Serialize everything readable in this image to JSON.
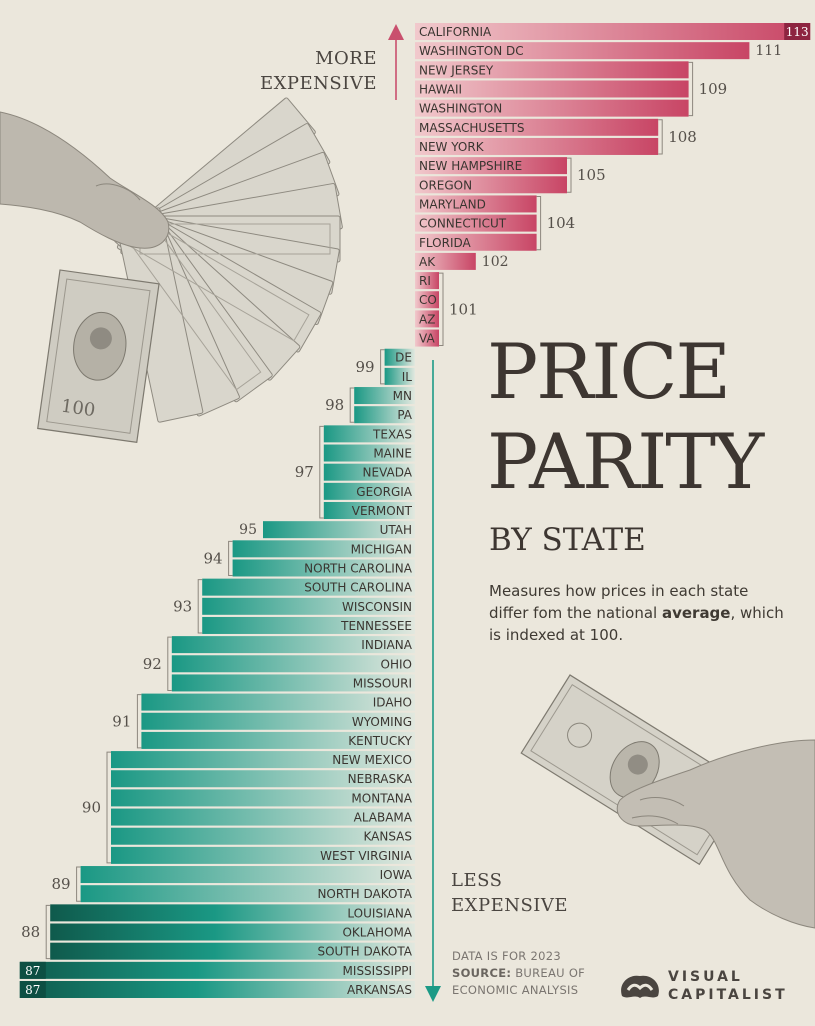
{
  "header": {
    "more_label_1": "MORE",
    "more_label_2": "EXPENSIVE",
    "less_label_1": "LESS",
    "less_label_2": "EXPENSIVE"
  },
  "title": {
    "line1": "PRICE",
    "line2": "PARITY",
    "subtitle": "BY STATE",
    "description_pre": "Measures how prices in each state differ fom the national ",
    "description_bold": "average",
    "description_post": ", which is indexed at 100."
  },
  "footer": {
    "data_year": "DATA IS FOR 2023",
    "source_label": "SOURCE:",
    "source_text": "BUREAU OF ECONOMIC ANALYSIS",
    "logo_line1": "VISUAL",
    "logo_line2": "CAPITALIST"
  },
  "colors": {
    "above_average": "#c94a68",
    "above_average_light": "#efc2c6",
    "below_average": "#1c9a86",
    "below_average_light": "#dde6dc",
    "darkest": "#0f5a4c"
  },
  "chart_data": {
    "type": "bar",
    "baseline": 100,
    "xlim": [
      86,
      113
    ],
    "categories": [
      "CALIFORNIA",
      "WASHINGTON DC",
      "NEW JERSEY",
      "HAWAII",
      "WASHINGTON",
      "MASSACHUSETTS",
      "NEW YORK",
      "NEW HAMPSHIRE",
      "OREGON",
      "MARYLAND",
      "CONNECTICUT",
      "FLORIDA",
      "AK",
      "RI",
      "CO",
      "AZ",
      "VA",
      "DE",
      "IL",
      "MN",
      "PA",
      "TEXAS",
      "MAINE",
      "NEVADA",
      "GEORGIA",
      "VERMONT",
      "UTAH",
      "MICHIGAN",
      "NORTH CAROLINA",
      "SOUTH CAROLINA",
      "WISCONSIN",
      "TENNESSEE",
      "INDIANA",
      "OHIO",
      "MISSOURI",
      "IDAHO",
      "WYOMING",
      "KENTUCKY",
      "NEW MEXICO",
      "NEBRASKA",
      "MONTANA",
      "ALABAMA",
      "KANSAS",
      "WEST VIRGINIA",
      "IOWA",
      "NORTH DAKOTA",
      "LOUISIANA",
      "OKLAHOMA",
      "SOUTH DAKOTA",
      "MISSISSIPPI",
      "ARKANSAS"
    ],
    "values": [
      113,
      111,
      109,
      109,
      109,
      108,
      108,
      105,
      105,
      104,
      104,
      104,
      102,
      101,
      101,
      101,
      101,
      99,
      99,
      98,
      98,
      97,
      97,
      97,
      97,
      97,
      95,
      94,
      94,
      93,
      93,
      93,
      92,
      92,
      92,
      91,
      91,
      91,
      90,
      90,
      90,
      90,
      90,
      90,
      89,
      89,
      88,
      88,
      88,
      87,
      87
    ],
    "group_labels": [
      "113",
      "111",
      "109",
      "108",
      "105",
      "104",
      "102",
      "101",
      "99",
      "98",
      "97",
      "95",
      "94",
      "93",
      "92",
      "91",
      "90",
      "89",
      "88",
      "87",
      "87"
    ]
  }
}
